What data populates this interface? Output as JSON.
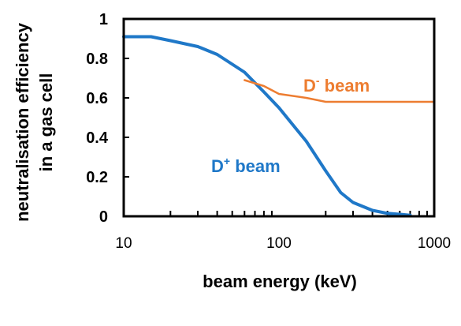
{
  "chart_data": {
    "type": "line",
    "xlabel": "beam energy (keV)",
    "ylabel_line1": "neutralisation efficiency",
    "ylabel_line2": "in a gas cell",
    "x_scale": "log",
    "xlim": [
      10,
      1000
    ],
    "ylim": [
      0,
      1
    ],
    "x_ticks": [
      "10",
      "100",
      "1000"
    ],
    "y_ticks": [
      "0",
      "0.2",
      "0.4",
      "0.6",
      "0.8",
      "1"
    ],
    "grid": false,
    "legend": "none",
    "series": [
      {
        "name_base": "D",
        "name_sup": "+",
        "name_suffix": " beam",
        "color": "#1f78c8",
        "x": [
          10,
          15,
          20,
          30,
          40,
          60,
          80,
          100,
          130,
          150,
          200,
          250,
          300,
          400,
          500,
          600,
          700
        ],
        "y": [
          0.91,
          0.91,
          0.89,
          0.86,
          0.82,
          0.73,
          0.63,
          0.55,
          0.44,
          0.38,
          0.23,
          0.12,
          0.07,
          0.03,
          0.015,
          0.01,
          0.005
        ]
      },
      {
        "name_base": "D",
        "name_sup": "-",
        "name_suffix": " beam",
        "color": "#ed7d31",
        "x": [
          60,
          80,
          100,
          150,
          200,
          300,
          500,
          700,
          1000
        ],
        "y": [
          0.69,
          0.66,
          0.62,
          0.6,
          0.58,
          0.58,
          0.58,
          0.58,
          0.58
        ]
      }
    ]
  }
}
